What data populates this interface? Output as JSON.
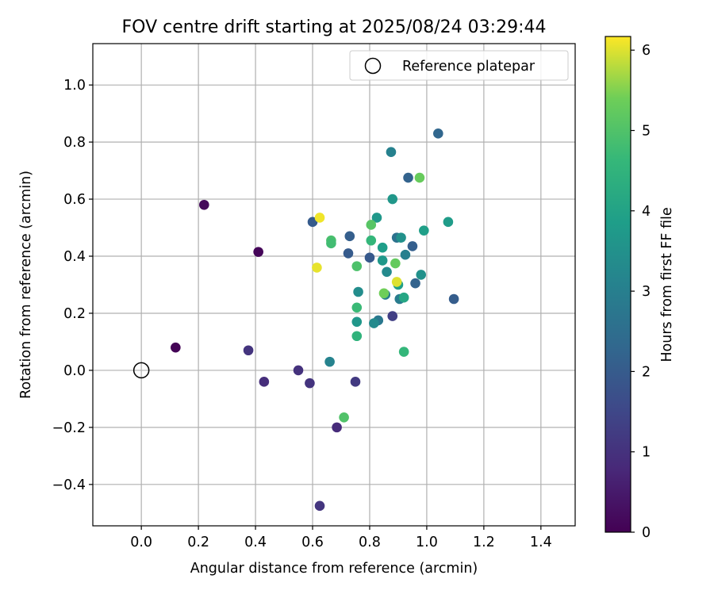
{
  "chart_data": {
    "type": "scatter",
    "title": "FOV centre drift starting at 2025/08/24 03:29:44",
    "xlabel": "Angular distance from reference (arcmin)",
    "ylabel": "Rotation from reference (arcmin)",
    "xlim": [
      -0.17,
      1.52
    ],
    "ylim": [
      -0.545,
      1.145
    ],
    "xticks": [
      "0.0",
      "0.2",
      "0.4",
      "0.6",
      "0.8",
      "1.0",
      "1.2",
      "1.4"
    ],
    "yticks": [
      "−0.4",
      "−0.2",
      "0.0",
      "0.2",
      "0.4",
      "0.6",
      "0.8",
      "1.0"
    ],
    "grid": true,
    "legend": {
      "placement": "top-right",
      "entries": [
        "Reference platepar"
      ]
    },
    "reference_point": {
      "x": 0.0,
      "y": 0.0,
      "marker": "open-circle"
    },
    "colorbar": {
      "label": "Hours from first FF file",
      "range": [
        0,
        6.17
      ],
      "ticks": [
        "0",
        "1",
        "2",
        "3",
        "4",
        "5",
        "6"
      ],
      "colormap": "viridis"
    },
    "points": [
      {
        "x": 0.12,
        "y": 0.08,
        "h": 0.05
      },
      {
        "x": 0.41,
        "y": 0.415,
        "h": 0.1
      },
      {
        "x": 0.22,
        "y": 0.58,
        "h": 0.15
      },
      {
        "x": 0.375,
        "y": 0.07,
        "h": 1.05
      },
      {
        "x": 0.43,
        "y": -0.04,
        "h": 0.9
      },
      {
        "x": 0.55,
        "y": 0.0,
        "h": 1.0
      },
      {
        "x": 0.59,
        "y": -0.045,
        "h": 1.05
      },
      {
        "x": 0.625,
        "y": -0.475,
        "h": 1.1
      },
      {
        "x": 0.685,
        "y": -0.2,
        "h": 0.85
      },
      {
        "x": 0.75,
        "y": -0.04,
        "h": 1.2
      },
      {
        "x": 0.88,
        "y": 0.19,
        "h": 1.3
      },
      {
        "x": 0.6,
        "y": 0.52,
        "h": 2.0
      },
      {
        "x": 0.73,
        "y": 0.47,
        "h": 2.1
      },
      {
        "x": 0.725,
        "y": 0.41,
        "h": 2.0
      },
      {
        "x": 0.8,
        "y": 0.395,
        "h": 1.95
      },
      {
        "x": 1.04,
        "y": 0.83,
        "h": 2.3
      },
      {
        "x": 0.935,
        "y": 0.675,
        "h": 2.2
      },
      {
        "x": 0.95,
        "y": 0.435,
        "h": 2.1
      },
      {
        "x": 0.96,
        "y": 0.305,
        "h": 2.2
      },
      {
        "x": 1.095,
        "y": 0.25,
        "h": 2.05
      },
      {
        "x": 0.66,
        "y": 0.03,
        "h": 3.1
      },
      {
        "x": 0.83,
        "y": 0.175,
        "h": 2.8
      },
      {
        "x": 0.815,
        "y": 0.165,
        "h": 3.3
      },
      {
        "x": 0.855,
        "y": 0.265,
        "h": 2.95
      },
      {
        "x": 0.905,
        "y": 0.25,
        "h": 2.9
      },
      {
        "x": 0.925,
        "y": 0.405,
        "h": 3.0
      },
      {
        "x": 0.895,
        "y": 0.465,
        "h": 2.6
      },
      {
        "x": 0.875,
        "y": 0.765,
        "h": 3.05
      },
      {
        "x": 0.76,
        "y": 0.275,
        "h": 3.4
      },
      {
        "x": 0.86,
        "y": 0.345,
        "h": 3.3
      },
      {
        "x": 0.98,
        "y": 0.335,
        "h": 3.5
      },
      {
        "x": 0.91,
        "y": 0.465,
        "h": 3.5
      },
      {
        "x": 0.88,
        "y": 0.6,
        "h": 3.65
      },
      {
        "x": 0.825,
        "y": 0.535,
        "h": 3.7
      },
      {
        "x": 0.755,
        "y": 0.17,
        "h": 3.65
      },
      {
        "x": 0.845,
        "y": 0.43,
        "h": 3.85
      },
      {
        "x": 0.845,
        "y": 0.385,
        "h": 3.7
      },
      {
        "x": 0.99,
        "y": 0.49,
        "h": 3.9
      },
      {
        "x": 1.075,
        "y": 0.52,
        "h": 3.8
      },
      {
        "x": 0.9,
        "y": 0.3,
        "h": 3.9
      },
      {
        "x": 0.92,
        "y": 0.255,
        "h": 4.1
      },
      {
        "x": 0.755,
        "y": 0.12,
        "h": 4.5
      },
      {
        "x": 0.92,
        "y": 0.065,
        "h": 4.6
      },
      {
        "x": 0.755,
        "y": 0.22,
        "h": 4.7
      },
      {
        "x": 0.805,
        "y": 0.455,
        "h": 4.6
      },
      {
        "x": 0.665,
        "y": 0.455,
        "h": 4.9
      },
      {
        "x": 0.665,
        "y": 0.445,
        "h": 4.8
      },
      {
        "x": 0.755,
        "y": 0.365,
        "h": 4.95
      },
      {
        "x": 0.71,
        "y": -0.165,
        "h": 5.0
      },
      {
        "x": 0.805,
        "y": 0.51,
        "h": 5.1
      },
      {
        "x": 0.89,
        "y": 0.375,
        "h": 5.25
      },
      {
        "x": 0.85,
        "y": 0.27,
        "h": 5.4
      },
      {
        "x": 0.975,
        "y": 0.675,
        "h": 5.3
      },
      {
        "x": 0.615,
        "y": 0.36,
        "h": 6.05
      },
      {
        "x": 0.625,
        "y": 0.535,
        "h": 6.1
      },
      {
        "x": 0.895,
        "y": 0.31,
        "h": 6.0
      }
    ]
  }
}
